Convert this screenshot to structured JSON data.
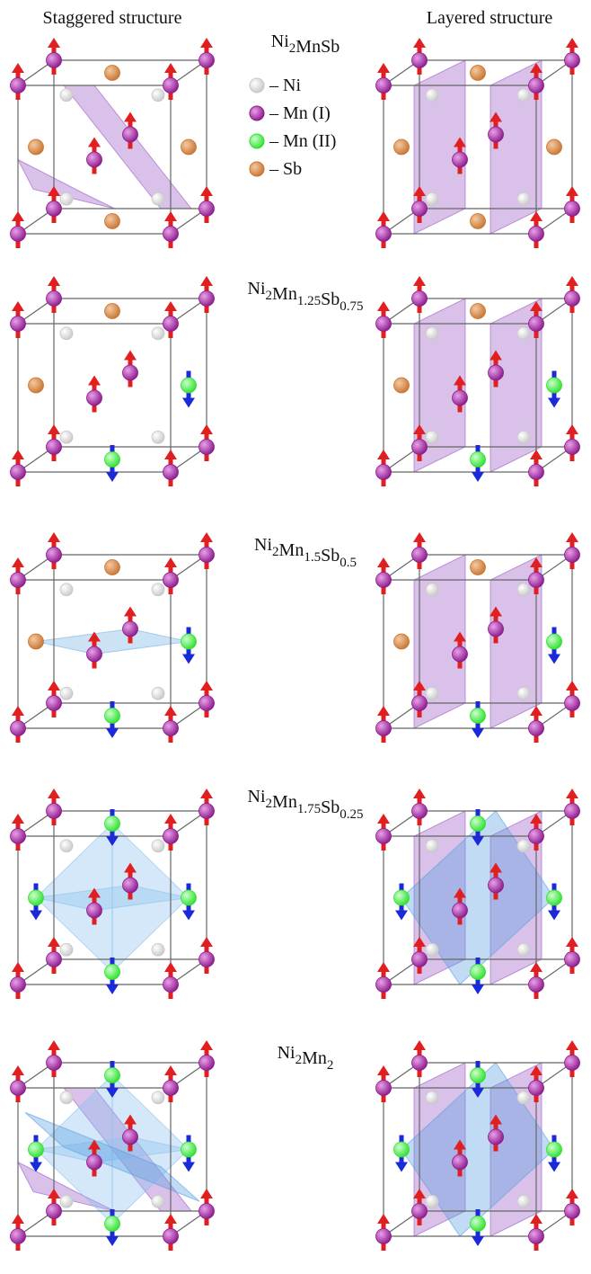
{
  "headers": {
    "left": "Staggered structure",
    "right": "Layered structure"
  },
  "legend": [
    {
      "label": "– Ni",
      "color": "#c8c8c8"
    },
    {
      "label": "– Mn (I)",
      "color": "#8b1a8b"
    },
    {
      "label": "– Mn (II)",
      "color": "#2ee02e"
    },
    {
      "label": "– Sb",
      "color": "#c87533"
    }
  ],
  "rows": [
    {
      "formula": [
        {
          "el": "Ni",
          "sub": "2"
        },
        {
          "el": "MnSb"
        }
      ]
    },
    {
      "formula": [
        {
          "el": "Ni",
          "sub": "2"
        },
        {
          "el": "Mn",
          "sub": "1.25"
        },
        {
          "el": "Sb",
          "sub": "0.75"
        }
      ]
    },
    {
      "formula": [
        {
          "el": "Ni",
          "sub": "2"
        },
        {
          "el": "Mn",
          "sub": "1.5"
        },
        {
          "el": "Sb",
          "sub": "0.5"
        }
      ]
    },
    {
      "formula": [
        {
          "el": "Ni",
          "sub": "2"
        },
        {
          "el": "Mn",
          "sub": "1.75"
        },
        {
          "el": "Sb",
          "sub": "0.25"
        }
      ]
    },
    {
      "formula": [
        {
          "el": "Ni",
          "sub": "2"
        },
        {
          "el": "Mn",
          "sub": "2"
        }
      ]
    }
  ]
}
